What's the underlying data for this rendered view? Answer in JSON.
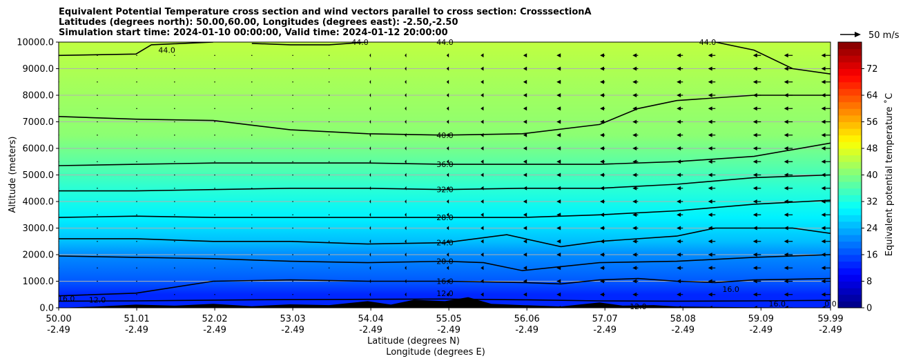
{
  "title_lines": [
    "Equivalent Potential Temperature cross section and wind vectors parallel to cross section: CrosssectionA",
    "Latitudes (degrees north): 50.00,60.00, Longitudes (degrees east): -2.50,-2.50",
    "Simulation start time: 2024-01-10 00:00:00, Valid time: 2024-01-12 20:00:00"
  ],
  "chart_data": {
    "type": "heatmap",
    "subtype": "filled contour cross section with contour lines and wind vectors",
    "xlabel": "Latitude (degrees N)",
    "xlabel2": "Longitude (degrees E)",
    "ylabel": "Altitude (meters)",
    "x_tick_labels": [
      {
        "lat": "50.00",
        "lon": "-2.49"
      },
      {
        "lat": "51.01",
        "lon": "-2.49"
      },
      {
        "lat": "52.02",
        "lon": "-2.49"
      },
      {
        "lat": "53.03",
        "lon": "-2.49"
      },
      {
        "lat": "54.04",
        "lon": "-2.49"
      },
      {
        "lat": "55.05",
        "lon": "-2.49"
      },
      {
        "lat": "56.06",
        "lon": "-2.49"
      },
      {
        "lat": "57.07",
        "lon": "-2.49"
      },
      {
        "lat": "58.08",
        "lon": "-2.49"
      },
      {
        "lat": "59.09",
        "lon": "-2.49"
      },
      {
        "lat": "59.99",
        "lon": "-2.49"
      }
    ],
    "xlim": [
      50.0,
      59.99
    ],
    "ylim": [
      0,
      10000
    ],
    "y_ticks": [
      0,
      1000,
      2000,
      3000,
      4000,
      5000,
      6000,
      7000,
      8000,
      9000,
      10000
    ],
    "y_tick_labels": [
      "0.0",
      "1000.0",
      "2000.0",
      "3000.0",
      "4000.0",
      "5000.0",
      "6000.0",
      "7000.0",
      "8000.0",
      "9000.0",
      "10000.0"
    ],
    "grid": "horizontal",
    "colorbar": {
      "label": "Equivalent potential temperature ˚C",
      "min": 0,
      "max": 80,
      "step": 2,
      "ticks": [
        0,
        8,
        16,
        24,
        32,
        40,
        48,
        56,
        64,
        72
      ],
      "colormap": "jet"
    },
    "theta_e_profile": [
      {
        "altitude": 0,
        "value": 12
      },
      {
        "altitude": 500,
        "value": 13
      },
      {
        "altitude": 1000,
        "value": 16
      },
      {
        "altitude": 2000,
        "value": 20
      },
      {
        "altitude": 2500,
        "value": 24
      },
      {
        "altitude": 3400,
        "value": 28
      },
      {
        "altitude": 4400,
        "value": 32
      },
      {
        "altitude": 5400,
        "value": 36
      },
      {
        "altitude": 6500,
        "value": 40
      },
      {
        "altitude": 8500,
        "value": 43
      },
      {
        "altitude": 10000,
        "value": 44
      }
    ],
    "contours": [
      {
        "value": 12,
        "label": "12.0",
        "points": [
          [
            50.0,
            250
          ],
          [
            51.0,
            260
          ],
          [
            52.5,
            300
          ],
          [
            54.0,
            320
          ],
          [
            55.0,
            330
          ],
          [
            56.0,
            300
          ],
          [
            57.0,
            260
          ],
          [
            58.0,
            250
          ],
          [
            59.0,
            260
          ],
          [
            59.99,
            280
          ]
        ]
      },
      {
        "value": 16,
        "label": "16.0",
        "points": [
          [
            50.0,
            450
          ],
          [
            51.0,
            550
          ],
          [
            52.0,
            1000
          ],
          [
            53.0,
            1050
          ],
          [
            54.0,
            1000
          ],
          [
            55.0,
            1000
          ],
          [
            56.0,
            950
          ],
          [
            56.5,
            900
          ],
          [
            57.0,
            1050
          ],
          [
            57.5,
            1100
          ],
          [
            58.0,
            1000
          ],
          [
            58.5,
            950
          ],
          [
            59.0,
            1050
          ],
          [
            59.99,
            1100
          ]
        ]
      },
      {
        "value": 20,
        "label": "20.0",
        "points": [
          [
            50.0,
            1950
          ],
          [
            51.0,
            1900
          ],
          [
            52.0,
            1850
          ],
          [
            53.0,
            1750
          ],
          [
            54.0,
            1700
          ],
          [
            55.0,
            1750
          ],
          [
            55.5,
            1700
          ],
          [
            56.0,
            1400
          ],
          [
            57.0,
            1700
          ],
          [
            58.0,
            1750
          ],
          [
            59.0,
            1900
          ],
          [
            59.99,
            2000
          ]
        ]
      },
      {
        "value": 24,
        "label": "24.0",
        "points": [
          [
            50.0,
            2600
          ],
          [
            51.0,
            2600
          ],
          [
            52.0,
            2500
          ],
          [
            53.0,
            2500
          ],
          [
            54.0,
            2400
          ],
          [
            55.0,
            2450
          ],
          [
            55.8,
            2750
          ],
          [
            56.5,
            2300
          ],
          [
            57.0,
            2500
          ],
          [
            58.0,
            2700
          ],
          [
            58.5,
            3000
          ],
          [
            59.5,
            3000
          ],
          [
            59.99,
            2800
          ]
        ]
      },
      {
        "value": 28,
        "label": "28.0",
        "points": [
          [
            50.0,
            3400
          ],
          [
            51.0,
            3450
          ],
          [
            52.0,
            3400
          ],
          [
            53.0,
            3400
          ],
          [
            54.0,
            3400
          ],
          [
            55.0,
            3400
          ],
          [
            56.0,
            3400
          ],
          [
            57.0,
            3500
          ],
          [
            58.0,
            3650
          ],
          [
            59.0,
            3900
          ],
          [
            59.99,
            4050
          ]
        ]
      },
      {
        "value": 32,
        "label": "32.0",
        "points": [
          [
            50.0,
            4400
          ],
          [
            51.0,
            4400
          ],
          [
            52.0,
            4450
          ],
          [
            53.0,
            4500
          ],
          [
            54.0,
            4500
          ],
          [
            55.0,
            4450
          ],
          [
            56.0,
            4500
          ],
          [
            57.0,
            4500
          ],
          [
            58.0,
            4650
          ],
          [
            59.0,
            4900
          ],
          [
            59.99,
            5000
          ]
        ]
      },
      {
        "value": 36,
        "label": "36.0",
        "points": [
          [
            50.0,
            5350
          ],
          [
            51.0,
            5400
          ],
          [
            52.0,
            5450
          ],
          [
            53.0,
            5450
          ],
          [
            54.0,
            5450
          ],
          [
            55.0,
            5400
          ],
          [
            56.0,
            5400
          ],
          [
            57.0,
            5400
          ],
          [
            58.0,
            5500
          ],
          [
            59.0,
            5700
          ],
          [
            59.99,
            6200
          ]
        ]
      },
      {
        "value": 40,
        "label": "40.0",
        "points": [
          [
            50.0,
            7200
          ],
          [
            51.0,
            7100
          ],
          [
            52.0,
            7050
          ],
          [
            53.0,
            6700
          ],
          [
            54.0,
            6550
          ],
          [
            55.0,
            6500
          ],
          [
            56.0,
            6550
          ],
          [
            57.0,
            6900
          ],
          [
            57.5,
            7500
          ],
          [
            58.0,
            7800
          ],
          [
            59.0,
            8000
          ],
          [
            59.99,
            8000
          ]
        ]
      },
      {
        "value": 44,
        "label": "44.0",
        "points": [
          [
            50.0,
            9500
          ],
          [
            51.0,
            9550
          ],
          [
            51.2,
            9900
          ],
          [
            52.0,
            10000
          ]
        ]
      },
      {
        "value": 44,
        "label": "44.0",
        "points": [
          [
            52.5,
            9950
          ],
          [
            53.0,
            9900
          ],
          [
            53.5,
            9900
          ],
          [
            54.0,
            10000
          ]
        ]
      },
      {
        "value": 44,
        "label": "44.0",
        "points": [
          [
            58.5,
            10000
          ],
          [
            59.0,
            9700
          ],
          [
            59.5,
            9000
          ],
          [
            59.99,
            8800
          ]
        ]
      }
    ],
    "contour_labels": [
      {
        "text": "12.0",
        "x": 50.5,
        "y": 300
      },
      {
        "text": "16.0",
        "x": 50.1,
        "y": 350
      },
      {
        "text": "12.0",
        "x": 55.0,
        "y": 550
      },
      {
        "text": "16.0",
        "x": 55.0,
        "y": 1000
      },
      {
        "text": "20.0",
        "x": 55.0,
        "y": 1750
      },
      {
        "text": "24.0",
        "x": 55.0,
        "y": 2450
      },
      {
        "text": "28.0",
        "x": 55.0,
        "y": 3400
      },
      {
        "text": "32.0",
        "x": 55.0,
        "y": 4450
      },
      {
        "text": "36.0",
        "x": 55.0,
        "y": 5400
      },
      {
        "text": "40.0",
        "x": 55.0,
        "y": 6500
      },
      {
        "text": "44.0",
        "x": 55.0,
        "y": 10000
      },
      {
        "text": "44.0",
        "x": 51.4,
        "y": 9700
      },
      {
        "text": "44.0",
        "x": 53.9,
        "y": 10000
      },
      {
        "text": "44.0",
        "x": 58.4,
        "y": 10000
      },
      {
        "text": "16.0",
        "x": 58.7,
        "y": 700
      },
      {
        "text": "16.0",
        "x": 59.3,
        "y": 150
      },
      {
        "text": "12.0",
        "x": 57.5,
        "y": 50
      },
      {
        "text": "0.0",
        "x": 59.99,
        "y": 150
      }
    ],
    "terrain": [
      [
        50.0,
        0
      ],
      [
        50.5,
        50
      ],
      [
        51.0,
        120
      ],
      [
        51.5,
        80
      ],
      [
        52.0,
        150
      ],
      [
        52.5,
        60
      ],
      [
        53.0,
        130
      ],
      [
        53.5,
        100
      ],
      [
        54.0,
        250
      ],
      [
        54.3,
        120
      ],
      [
        54.6,
        300
      ],
      [
        55.0,
        250
      ],
      [
        55.3,
        400
      ],
      [
        55.6,
        150
      ],
      [
        56.0,
        100
      ],
      [
        56.5,
        50
      ],
      [
        57.0,
        200
      ],
      [
        57.3,
        80
      ],
      [
        57.7,
        100
      ],
      [
        58.0,
        50
      ],
      [
        58.5,
        30
      ],
      [
        59.0,
        20
      ],
      [
        59.99,
        0
      ]
    ],
    "wind": {
      "reference": "50 m/s",
      "levels": [
        0,
        500,
        1000,
        1500,
        2000,
        2500,
        3000,
        3500,
        4000,
        4500,
        5000,
        5500,
        6000,
        6500,
        7000,
        7500,
        8000,
        8500,
        9000,
        9500
      ],
      "lat_points": [
        50.0,
        50.5,
        51.01,
        51.5,
        52.02,
        52.5,
        53.03,
        53.5,
        54.04,
        54.5,
        55.05,
        55.5,
        56.06,
        56.5,
        57.07,
        57.5,
        58.08,
        58.5,
        59.09,
        59.5,
        59.99
      ],
      "u_at_lat_m_s": [
        0,
        1,
        1,
        0,
        0,
        -1,
        -2,
        -3,
        -4,
        -5,
        -7,
        -9,
        -11,
        -13,
        -15,
        -17,
        -19,
        -22,
        -24,
        -26,
        -28
      ]
    }
  }
}
